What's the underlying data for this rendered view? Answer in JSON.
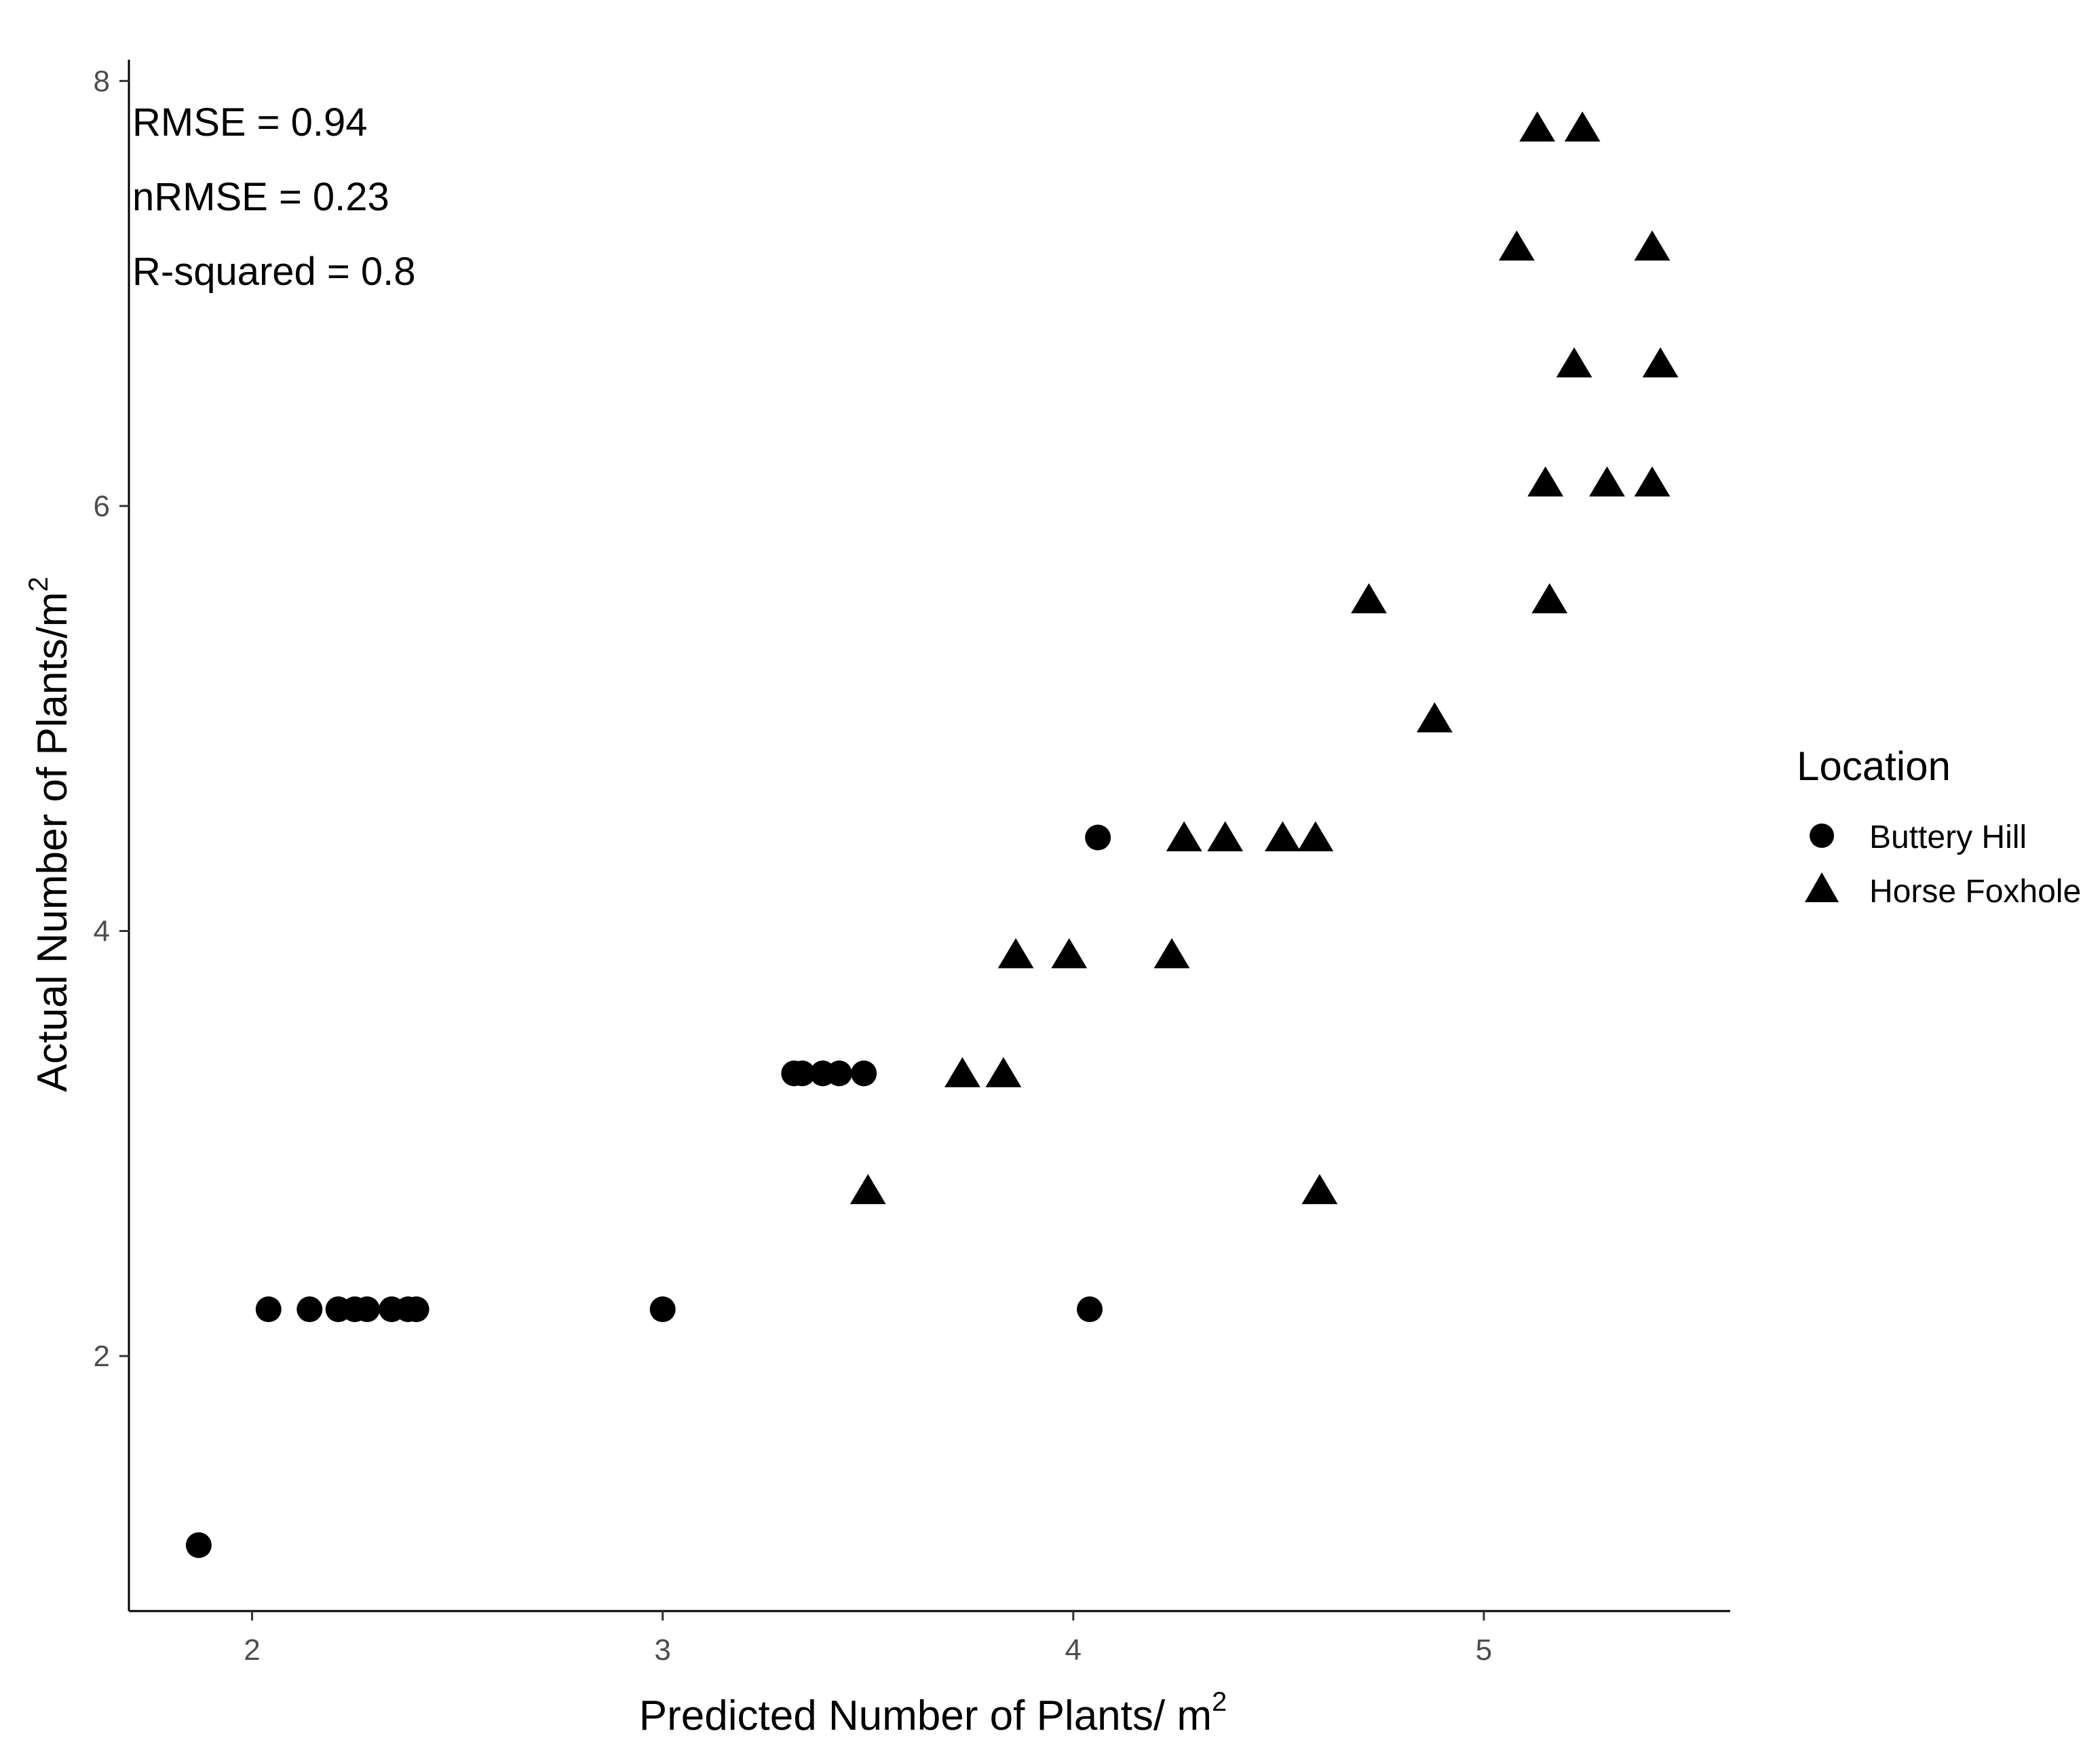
{
  "chart_data": {
    "type": "scatter",
    "title": "",
    "xlabel": "Predicted Number of Plants/ m",
    "xlabel_sup": "2",
    "ylabel": "Actual Number of Plants/m",
    "ylabel_sup": "2",
    "xlim": [
      1.7,
      5.6
    ],
    "ylim": [
      0.8,
      8.1
    ],
    "xticks": [
      2,
      3,
      4,
      5
    ],
    "yticks": [
      2,
      4,
      6,
      8
    ],
    "xtick_labels": [
      "2",
      "3",
      "4",
      "5"
    ],
    "ytick_labels": [
      "2",
      "4",
      "6",
      "8"
    ],
    "grid": false,
    "legend": {
      "title": "Location",
      "position": "right"
    },
    "annotations": [
      "RMSE = 0.94",
      "nRMSE = 0.23",
      "R-squared = 0.8"
    ],
    "series": [
      {
        "name": "Buttery Hill",
        "marker": "circle",
        "color": "#000000",
        "points": [
          [
            1.87,
            1.11
          ],
          [
            2.04,
            2.22
          ],
          [
            2.14,
            2.22
          ],
          [
            2.21,
            2.22
          ],
          [
            2.25,
            2.22
          ],
          [
            2.28,
            2.22
          ],
          [
            2.34,
            2.22
          ],
          [
            2.38,
            2.22
          ],
          [
            2.4,
            2.22
          ],
          [
            3.0,
            2.22
          ],
          [
            4.04,
            2.22
          ],
          [
            3.32,
            3.33
          ],
          [
            3.34,
            3.33
          ],
          [
            3.39,
            3.33
          ],
          [
            3.43,
            3.33
          ],
          [
            3.49,
            3.33
          ],
          [
            4.06,
            4.44
          ]
        ]
      },
      {
        "name": "Horse Foxhole",
        "marker": "triangle",
        "color": "#000000",
        "points": [
          [
            3.5,
            2.78
          ],
          [
            4.6,
            2.78
          ],
          [
            3.73,
            3.33
          ],
          [
            3.83,
            3.33
          ],
          [
            3.86,
            3.89
          ],
          [
            3.99,
            3.89
          ],
          [
            4.24,
            3.89
          ],
          [
            4.27,
            4.44
          ],
          [
            4.37,
            4.44
          ],
          [
            4.51,
            4.44
          ],
          [
            4.59,
            4.44
          ],
          [
            4.88,
            5.0
          ],
          [
            4.72,
            5.56
          ],
          [
            5.16,
            5.56
          ],
          [
            5.15,
            6.11
          ],
          [
            5.3,
            6.11
          ],
          [
            5.41,
            6.11
          ],
          [
            5.22,
            6.67
          ],
          [
            5.43,
            6.67
          ],
          [
            5.08,
            7.22
          ],
          [
            5.41,
            7.22
          ],
          [
            5.13,
            7.78
          ],
          [
            5.24,
            7.78
          ]
        ]
      }
    ]
  }
}
